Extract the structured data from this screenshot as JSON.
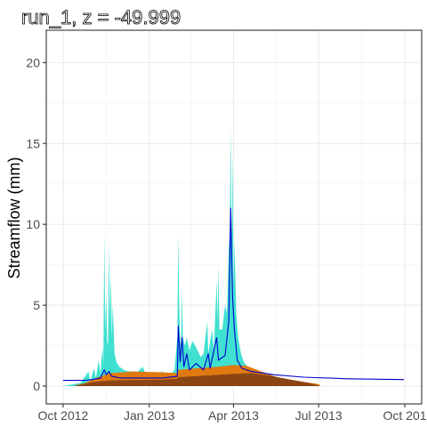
{
  "chart_data": {
    "type": "area",
    "title": "run_1, z = -49.999",
    "xlabel": "",
    "ylabel": "Streamflow (mm)",
    "x_ticks": [
      "Oct 2012",
      "Jan 2013",
      "Apr 2013",
      "Jul 2013",
      "Oct 2013"
    ],
    "x_tick_labels": [
      "Oct 2012",
      "Jan 2013",
      "Apr 2013",
      "Jul 2013",
      "Oct 201"
    ],
    "y_ticks": [
      0,
      5,
      10,
      15,
      20
    ],
    "xlim": [
      "2012-09-13",
      "2013-10-19"
    ],
    "ylim": [
      -1.1,
      22
    ],
    "grid": true,
    "series": [
      {
        "color": "#40E0D0",
        "kind": "spikes",
        "points": [
          [
            "2012-10-01",
            0
          ],
          [
            "2012-10-20",
            0.2
          ],
          [
            "2012-10-28",
            0.9
          ],
          [
            "2012-10-30",
            0.3
          ],
          [
            "2012-11-03",
            1.1
          ],
          [
            "2012-11-05",
            0.5
          ],
          [
            "2012-11-08",
            1.6
          ],
          [
            "2012-11-10",
            0.8
          ],
          [
            "2012-11-12",
            2.4
          ],
          [
            "2012-11-13",
            1.4
          ],
          [
            "2012-11-14",
            9.5
          ],
          [
            "2012-11-15",
            3.5
          ],
          [
            "2012-11-16",
            5.8
          ],
          [
            "2012-11-17",
            2.8
          ],
          [
            "2012-11-18",
            2.5
          ],
          [
            "2012-11-19",
            8.8
          ],
          [
            "2012-11-20",
            4.0
          ],
          [
            "2012-11-21",
            7.0
          ],
          [
            "2012-11-22",
            3.0
          ],
          [
            "2012-11-23",
            5.0
          ],
          [
            "2012-11-25",
            2.0
          ],
          [
            "2012-11-27",
            1.5
          ],
          [
            "2012-11-30",
            1.2
          ],
          [
            "2012-12-05",
            1.0
          ],
          [
            "2012-12-10",
            0.9
          ],
          [
            "2012-12-20",
            0.9
          ],
          [
            "2012-12-25",
            1.2
          ],
          [
            "2012-12-28",
            0.8
          ],
          [
            "2013-01-10",
            0.8
          ],
          [
            "2013-01-15",
            0.9
          ],
          [
            "2013-01-18",
            0.8
          ],
          [
            "2013-01-22",
            0.6
          ],
          [
            "2013-01-28",
            1.0
          ],
          [
            "2013-01-31",
            3.0
          ],
          [
            "2013-02-01",
            9.5
          ],
          [
            "2013-02-02",
            5.0
          ],
          [
            "2013-02-03",
            3.0
          ],
          [
            "2013-02-04",
            2.5
          ],
          [
            "2013-02-05",
            6.0
          ],
          [
            "2013-02-06",
            3.0
          ],
          [
            "2013-02-08",
            2.5
          ],
          [
            "2013-02-10",
            3.0
          ],
          [
            "2013-02-13",
            2.2
          ],
          [
            "2013-02-16",
            2.8
          ],
          [
            "2013-02-20",
            2.4
          ],
          [
            "2013-02-25",
            1.8
          ],
          [
            "2013-02-28",
            2.0
          ],
          [
            "2013-03-04",
            4.0
          ],
          [
            "2013-03-05",
            2.0
          ],
          [
            "2013-03-09",
            3.5
          ],
          [
            "2013-03-11",
            2.2
          ],
          [
            "2013-03-14",
            6.5
          ],
          [
            "2013-03-15",
            4.0
          ],
          [
            "2013-03-16",
            7.5
          ],
          [
            "2013-03-17",
            3.5
          ],
          [
            "2013-03-20",
            3.5
          ],
          [
            "2013-03-23",
            5.0
          ],
          [
            "2013-03-25",
            4.5
          ],
          [
            "2013-03-27",
            8.5
          ],
          [
            "2013-03-28",
            9.5
          ],
          [
            "2013-03-29",
            16.0
          ],
          [
            "2013-03-30",
            8.0
          ],
          [
            "2013-03-31",
            14.5
          ],
          [
            "2013-04-01",
            6.0
          ],
          [
            "2013-04-02",
            9.0
          ],
          [
            "2013-04-04",
            4.5
          ],
          [
            "2013-04-06",
            3.0
          ],
          [
            "2013-04-09",
            2.0
          ],
          [
            "2013-04-12",
            1.5
          ],
          [
            "2013-04-16",
            1.2
          ],
          [
            "2013-04-22",
            1.0
          ],
          [
            "2013-04-30",
            0.7
          ],
          [
            "2013-05-10",
            0.4
          ],
          [
            "2013-05-20",
            0.1
          ],
          [
            "2013-05-25",
            0
          ]
        ]
      },
      {
        "color": "#E07A10",
        "kind": "area",
        "points": [
          [
            "2012-10-12",
            0
          ],
          [
            "2012-10-25",
            0.2
          ],
          [
            "2012-11-05",
            0.5
          ],
          [
            "2012-11-20",
            0.8
          ],
          [
            "2012-12-15",
            0.9
          ],
          [
            "2013-01-15",
            0.85
          ],
          [
            "2013-01-31",
            0.8
          ],
          [
            "2013-02-01",
            1.0
          ],
          [
            "2013-02-20",
            1.1
          ],
          [
            "2013-03-15",
            1.2
          ],
          [
            "2013-03-31",
            1.3
          ],
          [
            "2013-04-15",
            1.25
          ],
          [
            "2013-05-01",
            0.9
          ],
          [
            "2013-05-20",
            0.5
          ],
          [
            "2013-06-10",
            0.3
          ],
          [
            "2013-07-01",
            0.12
          ],
          [
            "2013-07-03",
            0
          ]
        ]
      },
      {
        "color": "#8B4513",
        "kind": "area",
        "points": [
          [
            "2012-10-12",
            0
          ],
          [
            "2012-11-01",
            0.25
          ],
          [
            "2012-11-20",
            0.35
          ],
          [
            "2013-01-15",
            0.4
          ],
          [
            "2013-01-31",
            0.45
          ],
          [
            "2013-02-01",
            0.55
          ],
          [
            "2013-03-01",
            0.65
          ],
          [
            "2013-03-31",
            0.75
          ],
          [
            "2013-04-20",
            0.8
          ],
          [
            "2013-05-10",
            0.65
          ],
          [
            "2013-06-01",
            0.4
          ],
          [
            "2013-06-20",
            0.2
          ],
          [
            "2013-07-03",
            0
          ]
        ]
      },
      {
        "color": "#0000CD",
        "kind": "line",
        "points": [
          [
            "2012-10-01",
            0.35
          ],
          [
            "2012-10-25",
            0.35
          ],
          [
            "2012-11-01",
            0.4
          ],
          [
            "2012-11-10",
            0.5
          ],
          [
            "2012-11-14",
            1.0
          ],
          [
            "2012-11-16",
            0.7
          ],
          [
            "2012-11-19",
            0.9
          ],
          [
            "2012-11-22",
            0.6
          ],
          [
            "2012-12-01",
            0.5
          ],
          [
            "2013-01-15",
            0.5
          ],
          [
            "2013-01-31",
            0.6
          ],
          [
            "2013-02-01",
            3.7
          ],
          [
            "2013-02-03",
            1.5
          ],
          [
            "2013-02-05",
            3.0
          ],
          [
            "2013-02-07",
            1.2
          ],
          [
            "2013-02-10",
            2.0
          ],
          [
            "2013-02-13",
            1.0
          ],
          [
            "2013-02-20",
            1.4
          ],
          [
            "2013-02-28",
            1.0
          ],
          [
            "2013-03-05",
            2.0
          ],
          [
            "2013-03-07",
            1.1
          ],
          [
            "2013-03-14",
            3.0
          ],
          [
            "2013-03-16",
            1.6
          ],
          [
            "2013-03-23",
            1.9
          ],
          [
            "2013-03-27",
            4.0
          ],
          [
            "2013-03-29",
            11.0
          ],
          [
            "2013-03-31",
            5.5
          ],
          [
            "2013-04-02",
            3.5
          ],
          [
            "2013-04-05",
            1.6
          ],
          [
            "2013-04-10",
            1.1
          ],
          [
            "2013-04-20",
            0.9
          ],
          [
            "2013-05-15",
            0.7
          ],
          [
            "2013-06-15",
            0.55
          ],
          [
            "2013-08-01",
            0.45
          ],
          [
            "2013-09-30",
            0.4
          ]
        ]
      }
    ]
  }
}
